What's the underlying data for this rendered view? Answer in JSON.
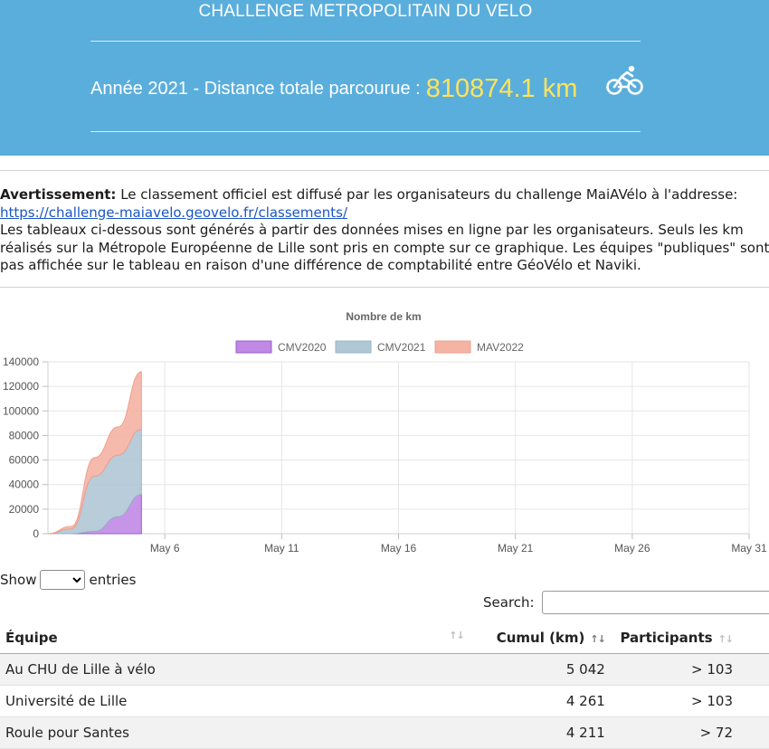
{
  "header": {
    "title": "CHALLENGE METROPOLITAIN DU VELO",
    "year_label": "Année 2021 - Distance totale parcourue :",
    "total": "810874.1 km",
    "bike_icon": "bicycle-icon"
  },
  "notice": {
    "warning_label": "Avertissement:",
    "line1": "Le classement officiel est diffusé par les organisateurs du challenge MaiAVélo à l'addresse:",
    "link": "https://challenge-maiavelo.geovelo.fr/classements/",
    "line3": "Les tableaux ci-dessous sont générés à partir des données mises en ligne par les organisateurs. Seuls les km",
    "line4": "réalisés sur la Métropole Européenne de Lille sont pris en compte sur ce graphique. Les équipes \"publiques\" sont",
    "line5": "pas affichée sur le tableau en raison d'une différence de comptabilité entre GéoVélo et Naviki."
  },
  "chart_data": {
    "type": "area",
    "title": "Nombre de km",
    "stacked": true,
    "x": [
      "May 1",
      "May 2",
      "May 3",
      "May 4",
      "May 5"
    ],
    "x_ticks": [
      "May 6",
      "May 11",
      "May 16",
      "May 21",
      "May 26",
      "May 31"
    ],
    "x_range": [
      "May 1",
      "May 31"
    ],
    "ylim": [
      0,
      140000
    ],
    "y_ticks": [
      0,
      20000,
      40000,
      60000,
      80000,
      100000,
      120000,
      140000
    ],
    "grid": true,
    "legend_position": "top",
    "series": [
      {
        "name": "CMV2020",
        "color": "#c089e6",
        "stroke": "#9a5fc8",
        "values": [
          0,
          0,
          2000,
          14000,
          32000
        ]
      },
      {
        "name": "CMV2021",
        "color": "#b0c7d5",
        "stroke": "#9ab5c5",
        "values": [
          0,
          4000,
          45000,
          50000,
          53000
        ]
      },
      {
        "name": "MAV2022",
        "color": "#f5b3a4",
        "stroke": "#eea08e",
        "values": [
          0,
          2000,
          15000,
          23000,
          47000
        ]
      }
    ]
  },
  "table": {
    "show_label": "Show",
    "entries_label": "entries",
    "search_label": "Search:",
    "search_value": "",
    "columns": [
      "Équipe",
      "Cumul (km)",
      "Participants"
    ],
    "rows": [
      [
        "Au CHU de Lille à vélo",
        "5 042",
        "> 103"
      ],
      [
        "Université de Lille",
        "4 261",
        "> 103"
      ],
      [
        "Roule pour Santes",
        "4 211",
        "> 72"
      ]
    ]
  }
}
